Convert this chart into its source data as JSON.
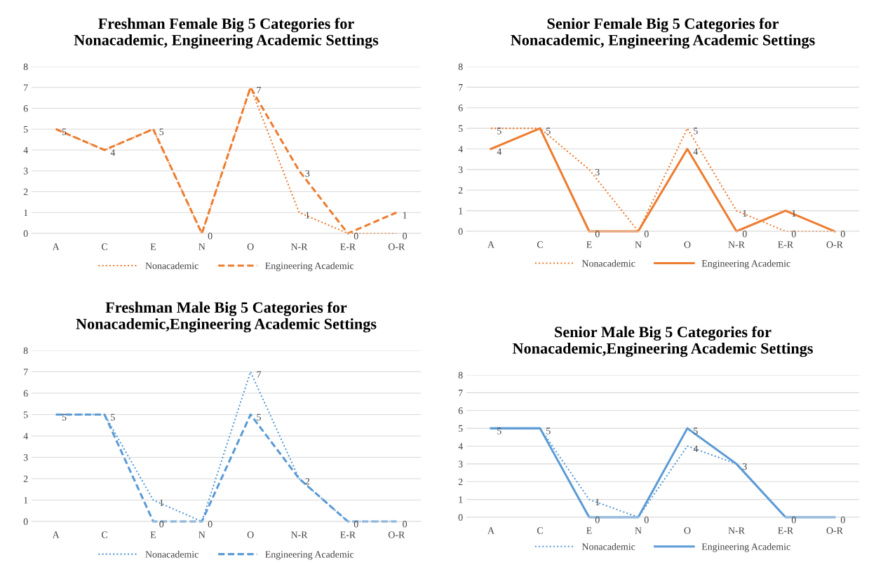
{
  "chart_data": [
    {
      "type": "line",
      "title": "Freshman Female Big 5 Categories for\nNonacademic, Engineering Academic Settings",
      "categories": [
        "A",
        "C",
        "E",
        "N",
        "O",
        "N-R",
        "E-R",
        "O-R"
      ],
      "ylim": [
        0,
        8
      ],
      "yticks": [
        0,
        1,
        2,
        3,
        4,
        5,
        6,
        7,
        8
      ],
      "grid": "y",
      "legend": "bottom",
      "marker": "none",
      "series": [
        {
          "name": "Nonacademic",
          "color": "#ed7d31",
          "line_style": "dotted",
          "values": [
            5,
            4,
            5,
            0,
            7,
            1,
            0,
            0
          ],
          "value_labels": [
            null,
            null,
            null,
            null,
            null,
            "1",
            null,
            "0"
          ]
        },
        {
          "name": "Engineering Academic",
          "color": "#ed7d31",
          "line_style": "dashed",
          "values": [
            5,
            4,
            5,
            0,
            7,
            3,
            0,
            1
          ],
          "value_labels": [
            "5",
            "4",
            "5",
            "0",
            "7",
            "3",
            "0",
            "1"
          ]
        }
      ]
    },
    {
      "type": "line",
      "title": "Senior Female Big 5 Categories for\nNonacademic, Engineering Academic Settings",
      "categories": [
        "A",
        "C",
        "E",
        "N",
        "O",
        "N-R",
        "E-R",
        "O-R"
      ],
      "ylim": [
        0,
        8
      ],
      "yticks": [
        0,
        1,
        2,
        3,
        4,
        5,
        6,
        7,
        8
      ],
      "grid": "y",
      "legend": "bottom",
      "marker": "none",
      "series": [
        {
          "name": "Nonacademic",
          "color": "#ed7d31",
          "line_style": "dotted",
          "values": [
            5,
            5,
            3,
            0,
            5,
            1,
            0,
            0
          ],
          "value_labels": [
            "5",
            null,
            "3",
            null,
            "5",
            "1",
            "0",
            null
          ]
        },
        {
          "name": "Engineering Academic",
          "color": "#ed7d31",
          "line_style": "solid",
          "values": [
            4,
            5,
            0,
            0,
            4,
            0,
            1,
            0
          ],
          "value_labels": [
            "4",
            "5",
            "0",
            "0",
            "4",
            "0",
            "1",
            "0"
          ]
        }
      ]
    },
    {
      "type": "line",
      "title": "Freshman Male Big 5 Categories for\nNonacademic,Engineering Academic Settings",
      "categories": [
        "A",
        "C",
        "E",
        "N",
        "O",
        "N-R",
        "E-R",
        "O-R"
      ],
      "ylim": [
        0,
        8
      ],
      "yticks": [
        0,
        1,
        2,
        3,
        4,
        5,
        6,
        7,
        8
      ],
      "grid": "y",
      "legend": "bottom",
      "marker": "none",
      "series": [
        {
          "name": "Nonacademic",
          "color": "#5b9bd5",
          "line_style": "dotted",
          "values": [
            5,
            5,
            1,
            0,
            7,
            2,
            0,
            0
          ],
          "value_labels": [
            null,
            null,
            "1",
            null,
            "7",
            null,
            null,
            null
          ]
        },
        {
          "name": "Engineering Academic",
          "color": "#5b9bd5",
          "line_style": "dashed",
          "values": [
            5,
            5,
            0,
            0,
            5,
            2,
            0,
            0
          ],
          "value_labels": [
            "5",
            "5",
            "0",
            "0",
            "5",
            "2",
            "0",
            "0"
          ]
        }
      ]
    },
    {
      "type": "line",
      "title": "Senior Male Big 5 Categories for\nNonacademic,Engineering Academic Settings",
      "categories": [
        "A",
        "C",
        "E",
        "N",
        "O",
        "N-R",
        "E-R",
        "O-R"
      ],
      "ylim": [
        0,
        8
      ],
      "yticks": [
        0,
        1,
        2,
        3,
        4,
        5,
        6,
        7,
        8
      ],
      "grid": "y",
      "legend": "bottom",
      "marker": "none",
      "series": [
        {
          "name": "Nonacademic",
          "color": "#5b9bd5",
          "line_style": "dotted",
          "values": [
            5,
            5,
            1,
            0,
            4,
            3,
            0,
            0
          ],
          "value_labels": [
            null,
            null,
            "1",
            null,
            "4",
            null,
            null,
            null
          ]
        },
        {
          "name": "Engineering Academic",
          "color": "#5b9bd5",
          "line_style": "solid",
          "values": [
            5,
            5,
            0,
            0,
            5,
            3,
            0,
            0
          ],
          "value_labels": [
            "5",
            "5",
            "0",
            "0",
            "5",
            "3",
            "0",
            "0"
          ]
        }
      ]
    }
  ]
}
